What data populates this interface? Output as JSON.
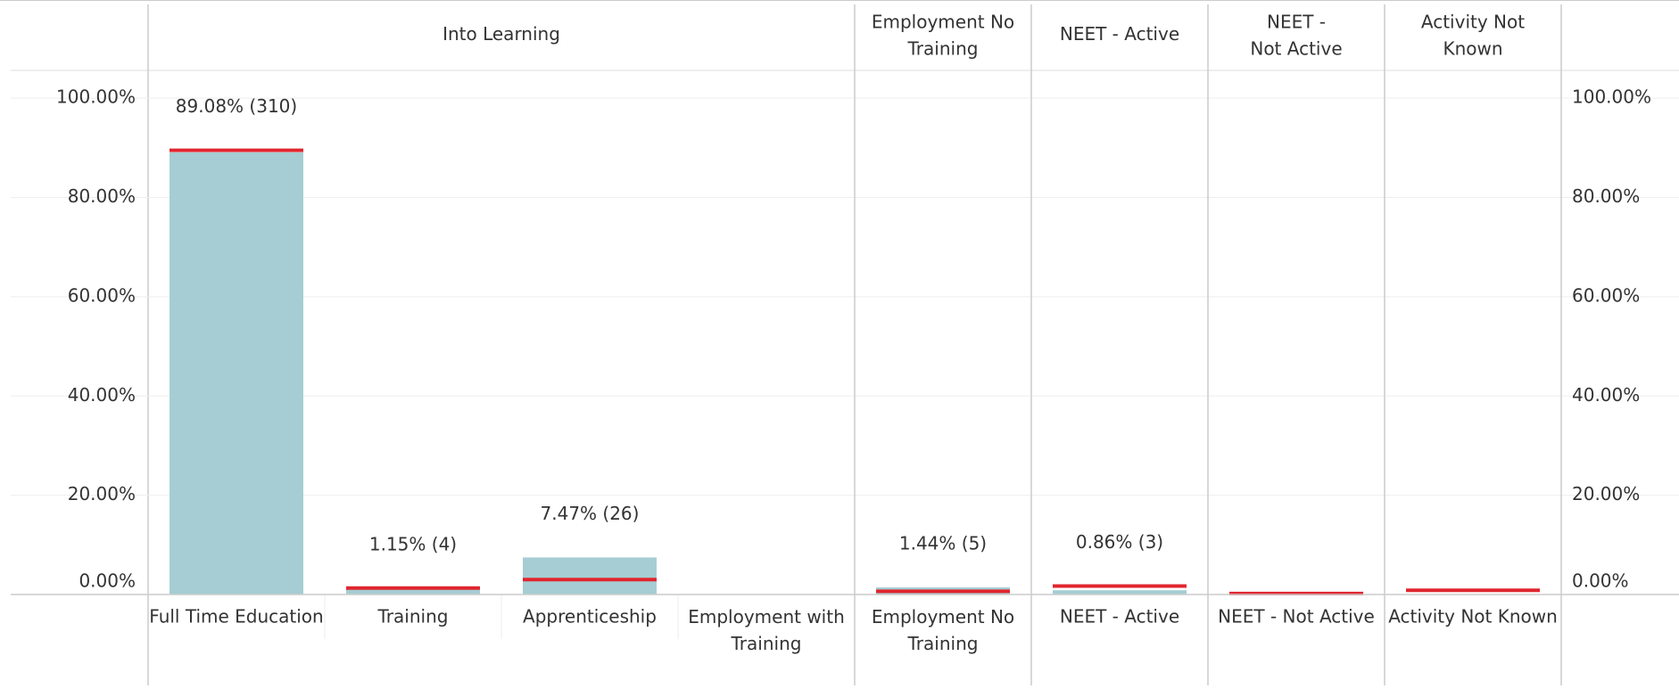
{
  "chart_data": {
    "type": "bar",
    "bar_color": "#a5cdd3",
    "reference_color": "#e0262f",
    "ylim": [
      0,
      105.6
    ],
    "yticks": [
      {
        "value": 0,
        "label": "0.00%"
      },
      {
        "value": 20,
        "label": "20.00%"
      },
      {
        "value": 40,
        "label": "40.00%"
      },
      {
        "value": 60,
        "label": "60.00%"
      },
      {
        "value": 80,
        "label": "80.00%"
      },
      {
        "value": 100,
        "label": "100.00%"
      }
    ],
    "grid": true,
    "groups": [
      {
        "label": "Into Learning",
        "categories": [
          "Full Time Education",
          "Training",
          "Apprenticeship",
          "Employment with Training"
        ],
        "values": [
          89.08,
          1.15,
          7.47,
          null
        ],
        "value_labels": [
          "89.08% (310)",
          "1.15% (4)",
          "7.47% (26)",
          null
        ],
        "reference": [
          89.5,
          1.3,
          3.0,
          null
        ]
      },
      {
        "label": "Employment No Training",
        "categories": [
          "Employment No Training"
        ],
        "values": [
          1.44
        ],
        "value_labels": [
          "1.44% (5)"
        ],
        "reference": [
          0.65
        ]
      },
      {
        "label": "NEET - Active",
        "categories": [
          "NEET - Active"
        ],
        "values": [
          0.86
        ],
        "value_labels": [
          "0.86% (3)"
        ],
        "reference": [
          1.7
        ]
      },
      {
        "label": "NEET - Not Active",
        "categories": [
          "NEET - Not Active"
        ],
        "values": [
          null
        ],
        "value_labels": [
          null
        ],
        "reference": [
          0.2
        ]
      },
      {
        "label": "Activity Not Known",
        "categories": [
          "Activity Not Known"
        ],
        "values": [
          null
        ],
        "value_labels": [
          null
        ],
        "reference": [
          0.86
        ]
      }
    ]
  }
}
